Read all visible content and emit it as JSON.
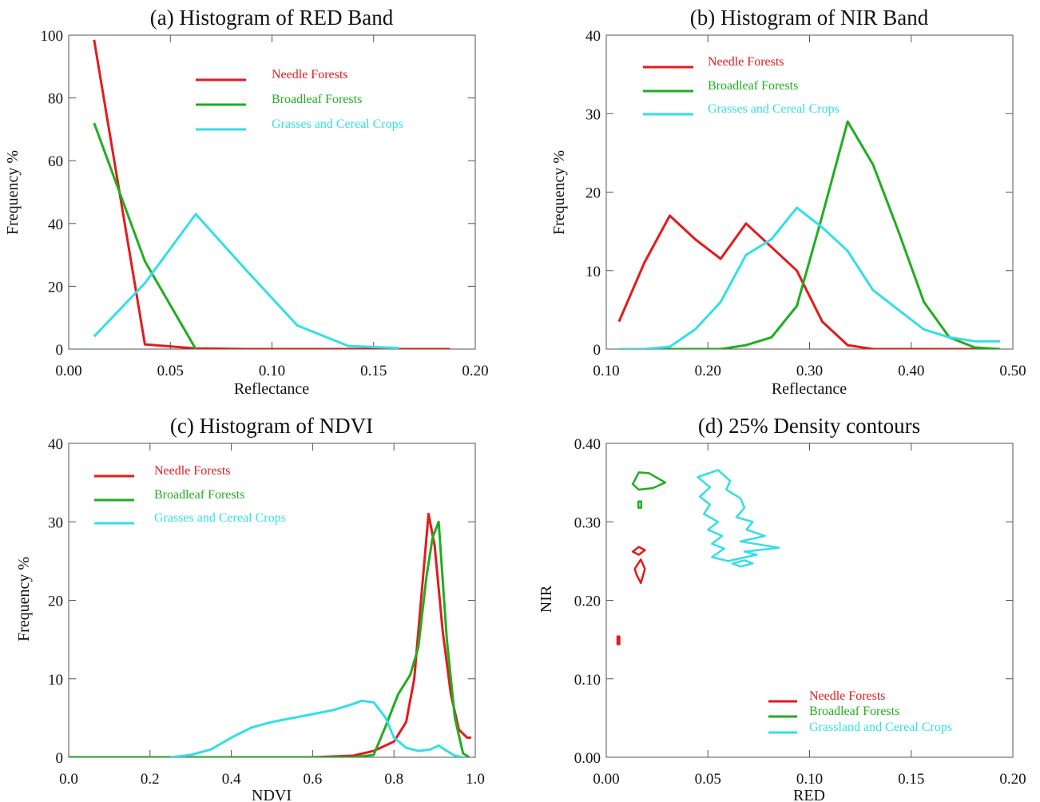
{
  "colors": {
    "needle": "#e41a1c",
    "broadleaf": "#1fae1f",
    "grasses": "#33dfe6"
  },
  "chart_data": [
    {
      "id": "a",
      "type": "line",
      "title": "(a) Histogram of RED Band",
      "xlabel": "Reflectance",
      "ylabel": "Frequency %",
      "xlim": [
        0.0,
        0.2
      ],
      "ylim": [
        0,
        100
      ],
      "xticks": [
        0.0,
        0.05,
        0.1,
        0.15,
        0.2
      ],
      "xtick_labels": [
        "0.00",
        "0.05",
        "0.10",
        "0.15",
        "0.20"
      ],
      "yticks": [
        0,
        20,
        40,
        60,
        80,
        100
      ],
      "ytick_labels": [
        "0",
        "20",
        "40",
        "60",
        "80",
        "100"
      ],
      "legend": "top-right",
      "series": [
        {
          "name": "Needle Forests",
          "color": "#e41a1c",
          "points": [
            [
              0.0125,
              98.5
            ],
            [
              0.0375,
              1.5
            ],
            [
              0.0625,
              0.2
            ],
            [
              0.0875,
              0
            ],
            [
              0.1125,
              0
            ],
            [
              0.1375,
              0
            ],
            [
              0.1625,
              0
            ],
            [
              0.1875,
              0
            ]
          ]
        },
        {
          "name": "Broadleaf Forests",
          "color": "#1fae1f",
          "points": [
            [
              0.0125,
              72
            ],
            [
              0.0375,
              28
            ],
            [
              0.0625,
              0
            ]
          ]
        },
        {
          "name": "Grasses and Cereal Crops",
          "color": "#33dfe6",
          "points": [
            [
              0.0125,
              4
            ],
            [
              0.0375,
              21
            ],
            [
              0.0625,
              43
            ],
            [
              0.0875,
              25
            ],
            [
              0.1125,
              7.5
            ],
            [
              0.1375,
              1
            ],
            [
              0.1625,
              0.3
            ]
          ]
        }
      ]
    },
    {
      "id": "b",
      "type": "line",
      "title": "(b) Histogram of NIR Band",
      "xlabel": "Reflectance",
      "ylabel": "Frequency %",
      "xlim": [
        0.1,
        0.5
      ],
      "ylim": [
        0,
        40
      ],
      "xticks": [
        0.1,
        0.2,
        0.3,
        0.4,
        0.5
      ],
      "xtick_labels": [
        "0.10",
        "0.20",
        "0.30",
        "0.40",
        "0.50"
      ],
      "yticks": [
        0,
        10,
        20,
        30,
        40
      ],
      "ytick_labels": [
        "0",
        "10",
        "20",
        "30",
        "40"
      ],
      "legend": "top-left",
      "series": [
        {
          "name": "Needle Forests",
          "color": "#e41a1c",
          "points": [
            [
              0.1125,
              3.5
            ],
            [
              0.1375,
              11
            ],
            [
              0.1625,
              17
            ],
            [
              0.1875,
              14
            ],
            [
              0.2125,
              11.5
            ],
            [
              0.2375,
              16
            ],
            [
              0.2625,
              13
            ],
            [
              0.2875,
              10
            ],
            [
              0.3125,
              3.5
            ],
            [
              0.3375,
              0.5
            ],
            [
              0.3625,
              0
            ],
            [
              0.3875,
              0
            ],
            [
              0.4125,
              0
            ],
            [
              0.4375,
              0
            ],
            [
              0.4625,
              0
            ],
            [
              0.4875,
              0
            ]
          ]
        },
        {
          "name": "Broadleaf Forests",
          "color": "#1fae1f",
          "points": [
            [
              0.1125,
              0
            ],
            [
              0.1375,
              0
            ],
            [
              0.1625,
              0
            ],
            [
              0.1875,
              0
            ],
            [
              0.2125,
              0
            ],
            [
              0.2375,
              0.5
            ],
            [
              0.2625,
              1.5
            ],
            [
              0.2875,
              5.5
            ],
            [
              0.3125,
              17
            ],
            [
              0.3375,
              29
            ],
            [
              0.3625,
              23.5
            ],
            [
              0.3875,
              15
            ],
            [
              0.4125,
              6
            ],
            [
              0.4375,
              1.5
            ],
            [
              0.4625,
              0.2
            ],
            [
              0.4875,
              0
            ]
          ]
        },
        {
          "name": "Grasses and Cereal Crops",
          "color": "#33dfe6",
          "points": [
            [
              0.1125,
              0
            ],
            [
              0.1375,
              0
            ],
            [
              0.1625,
              0.3
            ],
            [
              0.1875,
              2.5
            ],
            [
              0.2125,
              6
            ],
            [
              0.2375,
              12
            ],
            [
              0.2625,
              14
            ],
            [
              0.2875,
              18
            ],
            [
              0.3125,
              15.5
            ],
            [
              0.3375,
              12.5
            ],
            [
              0.3625,
              7.5
            ],
            [
              0.3875,
              5
            ],
            [
              0.4125,
              2.5
            ],
            [
              0.4375,
              1.5
            ],
            [
              0.4625,
              1
            ],
            [
              0.4875,
              1
            ]
          ]
        }
      ]
    },
    {
      "id": "c",
      "type": "line",
      "title": "(c) Histogram of NDVI",
      "xlabel": "NDVI",
      "ylabel": "Frequency %",
      "xlim": [
        0.0,
        1.0
      ],
      "ylim": [
        0,
        40
      ],
      "xticks": [
        0.0,
        0.2,
        0.4,
        0.6,
        0.8,
        1.0
      ],
      "xtick_labels": [
        "0.0",
        "0.2",
        "0.4",
        "0.6",
        "0.8",
        "1.0"
      ],
      "yticks": [
        0,
        10,
        20,
        30,
        40
      ],
      "ytick_labels": [
        "0",
        "10",
        "20",
        "30",
        "40"
      ],
      "legend": "top-left",
      "series": [
        {
          "name": "Needle Forests",
          "color": "#e41a1c",
          "points": [
            [
              0.0,
              0
            ],
            [
              0.6,
              0
            ],
            [
              0.7,
              0.2
            ],
            [
              0.75,
              0.8
            ],
            [
              0.8,
              2
            ],
            [
              0.83,
              4.5
            ],
            [
              0.85,
              10
            ],
            [
              0.87,
              22
            ],
            [
              0.885,
              31
            ],
            [
              0.9,
              27
            ],
            [
              0.92,
              16
            ],
            [
              0.94,
              8
            ],
            [
              0.96,
              3.5
            ],
            [
              0.98,
              2.5
            ],
            [
              0.99,
              2.5
            ]
          ]
        },
        {
          "name": "Broadleaf Forests",
          "color": "#1fae1f",
          "points": [
            [
              0.0,
              0
            ],
            [
              0.7,
              0
            ],
            [
              0.75,
              0.3
            ],
            [
              0.78,
              4
            ],
            [
              0.81,
              8
            ],
            [
              0.84,
              10.5
            ],
            [
              0.86,
              14
            ],
            [
              0.88,
              23
            ],
            [
              0.895,
              28
            ],
            [
              0.91,
              30
            ],
            [
              0.93,
              15
            ],
            [
              0.95,
              5
            ],
            [
              0.97,
              0.5
            ],
            [
              0.985,
              0
            ]
          ]
        },
        {
          "name": "Grasses and Cereal Crops",
          "color": "#33dfe6",
          "points": [
            [
              0.25,
              0
            ],
            [
              0.3,
              0.3
            ],
            [
              0.35,
              1
            ],
            [
              0.4,
              2.5
            ],
            [
              0.45,
              3.8
            ],
            [
              0.5,
              4.5
            ],
            [
              0.55,
              5
            ],
            [
              0.6,
              5.5
            ],
            [
              0.65,
              6
            ],
            [
              0.7,
              6.8
            ],
            [
              0.72,
              7.2
            ],
            [
              0.75,
              7
            ],
            [
              0.78,
              5
            ],
            [
              0.8,
              2.5
            ],
            [
              0.83,
              1.2
            ],
            [
              0.86,
              0.8
            ],
            [
              0.89,
              1
            ],
            [
              0.91,
              1.5
            ],
            [
              0.93,
              0.8
            ],
            [
              0.95,
              0.2
            ],
            [
              0.97,
              0
            ]
          ]
        }
      ]
    },
    {
      "id": "d",
      "type": "scatter",
      "title": "(d) 25% Density contours",
      "xlabel": "RED",
      "ylabel": "NIR",
      "xlim": [
        0.0,
        0.2
      ],
      "ylim": [
        0.0,
        0.4
      ],
      "xticks": [
        0.0,
        0.05,
        0.1,
        0.15,
        0.2
      ],
      "xtick_labels": [
        "0.00",
        "0.05",
        "0.10",
        "0.15",
        "0.20"
      ],
      "yticks": [
        0.0,
        0.1,
        0.2,
        0.3,
        0.4
      ],
      "ytick_labels": [
        "0.00",
        "0.10",
        "0.20",
        "0.30",
        "0.40"
      ],
      "legend": "bottom-right",
      "legend_order": [
        0,
        1,
        2
      ],
      "series": [
        {
          "name": "Needle Forests",
          "color": "#e41a1c",
          "contours": [
            [
              [
                0.013,
                0.262
              ],
              [
                0.016,
                0.268
              ],
              [
                0.019,
                0.264
              ],
              [
                0.016,
                0.258
              ],
              [
                0.013,
                0.262
              ]
            ],
            [
              [
                0.014,
                0.24
              ],
              [
                0.017,
                0.252
              ],
              [
                0.019,
                0.24
              ],
              [
                0.017,
                0.222
              ],
              [
                0.015,
                0.232
              ],
              [
                0.014,
                0.24
              ]
            ],
            [
              [
                0.0055,
                0.154
              ],
              [
                0.0065,
                0.154
              ],
              [
                0.0065,
                0.144
              ],
              [
                0.0055,
                0.144
              ],
              [
                0.0055,
                0.154
              ]
            ]
          ]
        },
        {
          "name": "Broadleaf Forests",
          "color": "#1fae1f",
          "contours": [
            [
              [
                0.013,
                0.348
              ],
              [
                0.016,
                0.363
              ],
              [
                0.021,
                0.362
              ],
              [
                0.029,
                0.35
              ],
              [
                0.023,
                0.343
              ],
              [
                0.016,
                0.341
              ],
              [
                0.013,
                0.348
              ]
            ],
            [
              [
                0.0158,
                0.326
              ],
              [
                0.0172,
                0.326
              ],
              [
                0.0172,
                0.318
              ],
              [
                0.0158,
                0.318
              ],
              [
                0.0158,
                0.326
              ]
            ]
          ]
        },
        {
          "name": "Grassland and Cereal Crops",
          "color": "#33dfe6",
          "contours": [
            [
              [
                0.045,
                0.357
              ],
              [
                0.055,
                0.366
              ],
              [
                0.061,
                0.352
              ],
              [
                0.059,
                0.341
              ],
              [
                0.066,
                0.33
              ],
              [
                0.068,
                0.318
              ],
              [
                0.064,
                0.306
              ],
              [
                0.072,
                0.3
              ],
              [
                0.069,
                0.29
              ],
              [
                0.078,
                0.282
              ],
              [
                0.066,
                0.275
              ],
              [
                0.085,
                0.267
              ],
              [
                0.068,
                0.262
              ],
              [
                0.074,
                0.258
              ],
              [
                0.06,
                0.25
              ],
              [
                0.052,
                0.255
              ],
              [
                0.058,
                0.266
              ],
              [
                0.052,
                0.272
              ],
              [
                0.057,
                0.282
              ],
              [
                0.05,
                0.29
              ],
              [
                0.055,
                0.3
              ],
              [
                0.048,
                0.31
              ],
              [
                0.051,
                0.322
              ],
              [
                0.046,
                0.332
              ],
              [
                0.051,
                0.344
              ],
              [
                0.045,
                0.357
              ]
            ],
            [
              [
                0.062,
                0.247
              ],
              [
                0.068,
                0.251
              ],
              [
                0.072,
                0.247
              ],
              [
                0.066,
                0.243
              ],
              [
                0.062,
                0.247
              ]
            ]
          ]
        }
      ]
    }
  ]
}
